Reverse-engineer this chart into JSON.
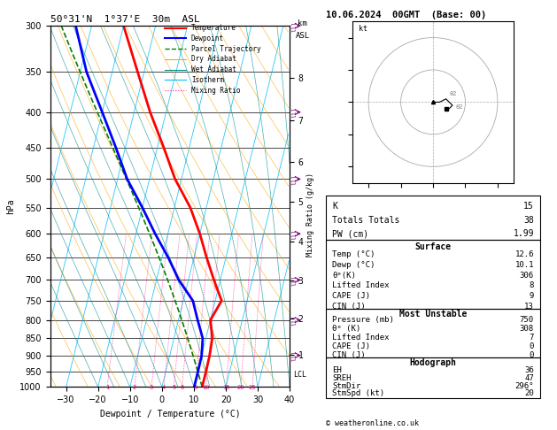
{
  "title_left": "50°31'N  1°37'E  30m  ASL",
  "title_right": "10.06.2024  00GMT  (Base: 00)",
  "xlabel": "Dewpoint / Temperature (°C)",
  "pressure_levels": [
    300,
    350,
    400,
    450,
    500,
    550,
    600,
    650,
    700,
    750,
    800,
    850,
    900,
    950,
    1000
  ],
  "km_pressures": [
    898,
    795,
    701,
    616,
    540,
    472,
    411,
    357
  ],
  "km_labels": [
    "1",
    "2",
    "3",
    "4",
    "5",
    "6",
    "7",
    "8"
  ],
  "mixing_ratios": [
    1,
    2,
    3,
    4,
    5,
    6,
    8,
    10,
    15,
    20,
    25
  ],
  "temp_profile": [
    -40,
    -32,
    -25,
    -18,
    -12,
    -5,
    0,
    4,
    8,
    12,
    10,
    12,
    12.5,
    12.6,
    12.6
  ],
  "dewp_profile": [
    -55,
    -48,
    -40,
    -33,
    -27,
    -20,
    -14,
    -8,
    -3,
    3,
    6,
    9,
    10,
    10.1,
    10.1
  ],
  "temp_color": "#FF0000",
  "dewp_color": "#0000FF",
  "parcel_color": "#008000",
  "isotherm_color": "#00BFFF",
  "dry_adiabat_color": "#FFA500",
  "wet_adiabat_color": "#008B8B",
  "mix_color": "#FF1493",
  "xmin": -35,
  "xmax": 40,
  "skew_deg": 28,
  "lcl_p": 960,
  "wind_barb_pressures": [
    300,
    400,
    500,
    600,
    700,
    800,
    900
  ],
  "stats": {
    "K": 15,
    "Totals_Totals": 38,
    "PW_cm": 1.99,
    "Surf_Temp": 12.6,
    "Surf_Dewp": 10.1,
    "Surf_theta_e": 306,
    "Surf_LI": 8,
    "Surf_CAPE": 9,
    "Surf_CIN": 13,
    "MU_Press": 750,
    "MU_theta_e": 308,
    "MU_LI": 7,
    "MU_CAPE": 0,
    "MU_CIN": 0,
    "EH": 36,
    "SREH": 47,
    "StmDir": 296,
    "StmSpd": 20
  }
}
